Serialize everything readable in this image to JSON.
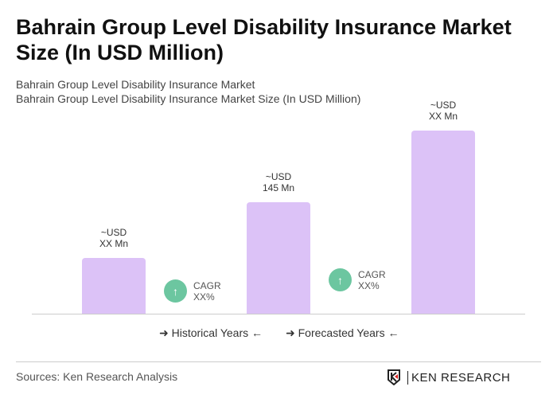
{
  "title": "Bahrain Group Level Disability Insurance Market Size (In USD Million)",
  "subtitle1": "Bahrain Group Level Disability Insurance Market",
  "subtitle2": "Bahrain Group Level Disability Insurance Market Size (In USD Million)",
  "chart_data": {
    "type": "bar",
    "values": [
      null,
      145,
      null
    ],
    "labels": [
      [
        "~USD",
        "XX Mn"
      ],
      [
        "~USD",
        "145 Mn"
      ],
      [
        "~USD",
        "XX Mn"
      ]
    ],
    "bar_color": "#dcc2f7",
    "cagr": [
      {
        "label": "CAGR",
        "value": "XX%"
      },
      {
        "label": "CAGR",
        "value": "XX%"
      }
    ],
    "cagr_color": "#6cc6a0",
    "legend": [
      "Historical Years",
      "Forecasted Years"
    ]
  },
  "sources": "Sources: Ken Research Analysis",
  "logo": "KEN RESEARCH"
}
